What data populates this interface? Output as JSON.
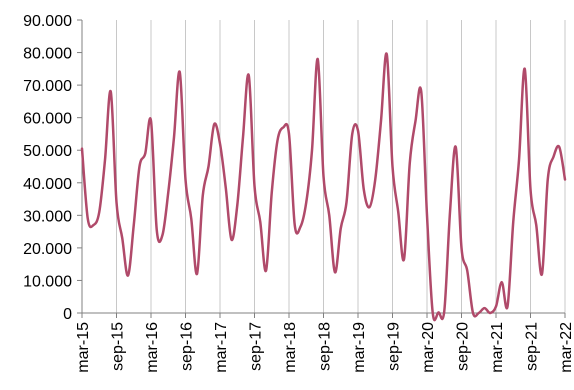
{
  "chart_data": {
    "type": "line",
    "title": "",
    "xlabel": "",
    "ylabel": "",
    "ylim": [
      0,
      90000
    ],
    "y_ticks": [
      {
        "value": 0,
        "label": "0"
      },
      {
        "value": 10000,
        "label": "10.000"
      },
      {
        "value": 20000,
        "label": "20.000"
      },
      {
        "value": 30000,
        "label": "30.000"
      },
      {
        "value": 40000,
        "label": "40.000"
      },
      {
        "value": 50000,
        "label": "50.000"
      },
      {
        "value": 60000,
        "label": "60.000"
      },
      {
        "value": 70000,
        "label": "70.000"
      },
      {
        "value": 80000,
        "label": "80.000"
      },
      {
        "value": 90000,
        "label": "90.000"
      }
    ],
    "x_tick_labels": [
      "mar-15",
      "sep-15",
      "mar-16",
      "sep-16",
      "mar-17",
      "sep-17",
      "mar-18",
      "sep-18",
      "mar-19",
      "sep-19",
      "mar-20",
      "sep-20",
      "mar-21",
      "sep-21",
      "mar-22"
    ],
    "grid": "vertical",
    "legend": "none",
    "line_color": "#b04a6a",
    "series": [
      {
        "x": [
          "mar-15",
          "apr-15",
          "may-15",
          "jun-15",
          "jul-15",
          "aug-15",
          "sep-15",
          "oct-15",
          "nov-15",
          "dec-15",
          "jan-16",
          "feb-16",
          "mar-16",
          "apr-16",
          "may-16",
          "jun-16",
          "jul-16",
          "aug-16",
          "sep-16",
          "oct-16",
          "nov-16",
          "dec-16",
          "jan-17",
          "feb-17",
          "mar-17",
          "apr-17",
          "may-17",
          "jun-17",
          "jul-17",
          "aug-17",
          "sep-17",
          "oct-17",
          "nov-17",
          "dec-17",
          "jan-18",
          "feb-18",
          "mar-18",
          "apr-18",
          "may-18",
          "jun-18",
          "jul-18",
          "aug-18",
          "sep-18",
          "oct-18",
          "nov-18",
          "dec-18",
          "jan-19",
          "feb-19",
          "mar-19",
          "apr-19",
          "may-19",
          "jun-19",
          "jul-19",
          "aug-19",
          "sep-19",
          "oct-19",
          "nov-19",
          "dec-19",
          "jan-20",
          "feb-20",
          "mar-20",
          "apr-20",
          "may-20",
          "jun-20",
          "jul-20",
          "aug-20",
          "sep-20",
          "oct-20",
          "nov-20",
          "dec-20",
          "jan-21",
          "feb-21",
          "mar-21",
          "apr-21",
          "may-21",
          "jun-21",
          "jul-21",
          "aug-21",
          "sep-21",
          "oct-21",
          "nov-21",
          "dec-21",
          "jan-22",
          "feb-22",
          "mar-22"
        ],
        "values": [
          50500,
          29000,
          27000,
          31000,
          47000,
          68000,
          34000,
          23000,
          11500,
          27000,
          45000,
          49000,
          59000,
          25500,
          24000,
          37000,
          54000,
          74000,
          41000,
          29000,
          12000,
          36000,
          45000,
          58000,
          52000,
          38500,
          22500,
          33000,
          54000,
          73000,
          39000,
          28000,
          13000,
          37000,
          53000,
          57000,
          55000,
          27000,
          26500,
          34000,
          50000,
          78000,
          42000,
          30000,
          12500,
          26000,
          34000,
          55000,
          56000,
          38000,
          32500,
          41000,
          59000,
          79500,
          45000,
          31000,
          16500,
          46000,
          59000,
          68000,
          30000,
          0,
          200,
          500,
          31000,
          51000,
          20000,
          13000,
          0,
          0,
          1500,
          0,
          2000,
          9500,
          2000,
          28000,
          47000,
          75000,
          38000,
          27000,
          12000,
          41000,
          48000,
          51000,
          41000
        ]
      }
    ]
  }
}
